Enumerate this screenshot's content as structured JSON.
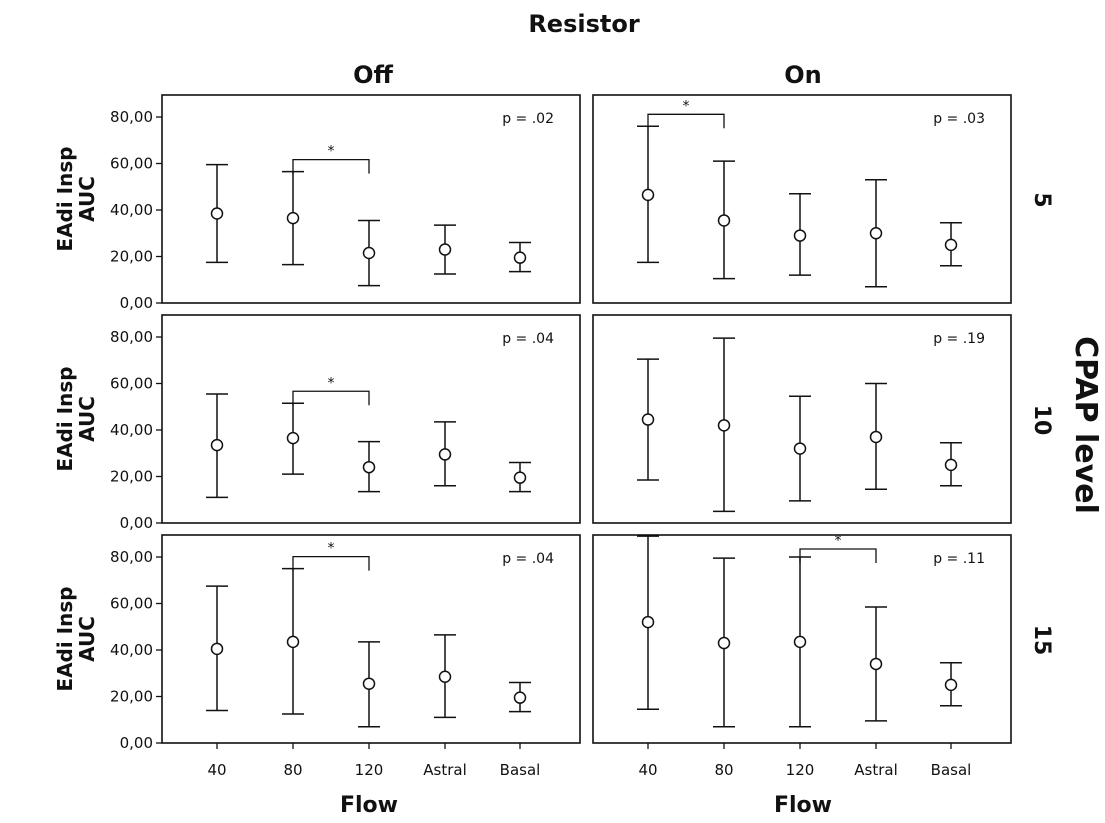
{
  "chart_data": {
    "type": "errorbar",
    "title": "Resistor",
    "column_labels": [
      "Off",
      "On"
    ],
    "row_title": "CPAP level",
    "row_labels": [
      "5",
      "10",
      "15"
    ],
    "xlabel": "Flow",
    "ylabel_line1": "EAdi Insp",
    "ylabel_line2": "AUC",
    "categories": [
      "40",
      "80",
      "120",
      "Astral",
      "Basal"
    ],
    "ylim": [
      0,
      80
    ],
    "yticks": [
      "0,00",
      "20,00",
      "40,00",
      "60,00",
      "80,00"
    ],
    "star_symbol": "*",
    "panels": [
      {
        "row": "5",
        "column": "Off",
        "p_label": "p = .02",
        "means": [
          38.5,
          36.5,
          21.5,
          23.0,
          19.5
        ],
        "lower": [
          17.5,
          16.5,
          7.5,
          12.5,
          13.5
        ],
        "upper": [
          59.5,
          56.5,
          35.5,
          33.5,
          26.0
        ],
        "significance": {
          "from": "80",
          "to": "120"
        }
      },
      {
        "row": "5",
        "column": "On",
        "p_label": "p = .03",
        "means": [
          46.5,
          35.5,
          29.0,
          30.0,
          25.0
        ],
        "lower": [
          17.5,
          10.5,
          12.0,
          7.0,
          16.0
        ],
        "upper": [
          76.0,
          61.0,
          47.0,
          53.0,
          34.5
        ],
        "significance": {
          "from": "40",
          "to": "80"
        }
      },
      {
        "row": "10",
        "column": "Off",
        "p_label": "p = .04",
        "means": [
          33.5,
          36.5,
          24.0,
          29.5,
          19.5
        ],
        "lower": [
          11.0,
          21.0,
          13.5,
          16.0,
          13.5
        ],
        "upper": [
          55.5,
          51.5,
          35.0,
          43.5,
          26.0
        ],
        "significance": {
          "from": "80",
          "to": "120"
        }
      },
      {
        "row": "10",
        "column": "On",
        "p_label": "p = .19",
        "means": [
          44.5,
          42.0,
          32.0,
          37.0,
          25.0
        ],
        "lower": [
          18.5,
          5.0,
          9.5,
          14.5,
          16.0
        ],
        "upper": [
          70.5,
          79.5,
          54.5,
          60.0,
          34.5
        ],
        "significance": null
      },
      {
        "row": "15",
        "column": "Off",
        "p_label": "p = .04",
        "means": [
          40.5,
          43.5,
          25.5,
          28.5,
          19.5
        ],
        "lower": [
          14.0,
          12.5,
          7.0,
          11.0,
          13.5
        ],
        "upper": [
          67.5,
          75.0,
          43.5,
          46.5,
          26.0
        ],
        "significance": {
          "from": "80",
          "to": "120"
        }
      },
      {
        "row": "15",
        "column": "On",
        "p_label": "p = .11",
        "means": [
          52.0,
          43.0,
          43.5,
          34.0,
          25.0
        ],
        "lower": [
          14.5,
          7.0,
          7.0,
          9.5,
          16.0
        ],
        "upper": [
          89.0,
          79.5,
          80.0,
          58.5,
          34.5
        ],
        "significance": {
          "from": "120",
          "to": "Astral"
        }
      }
    ]
  }
}
